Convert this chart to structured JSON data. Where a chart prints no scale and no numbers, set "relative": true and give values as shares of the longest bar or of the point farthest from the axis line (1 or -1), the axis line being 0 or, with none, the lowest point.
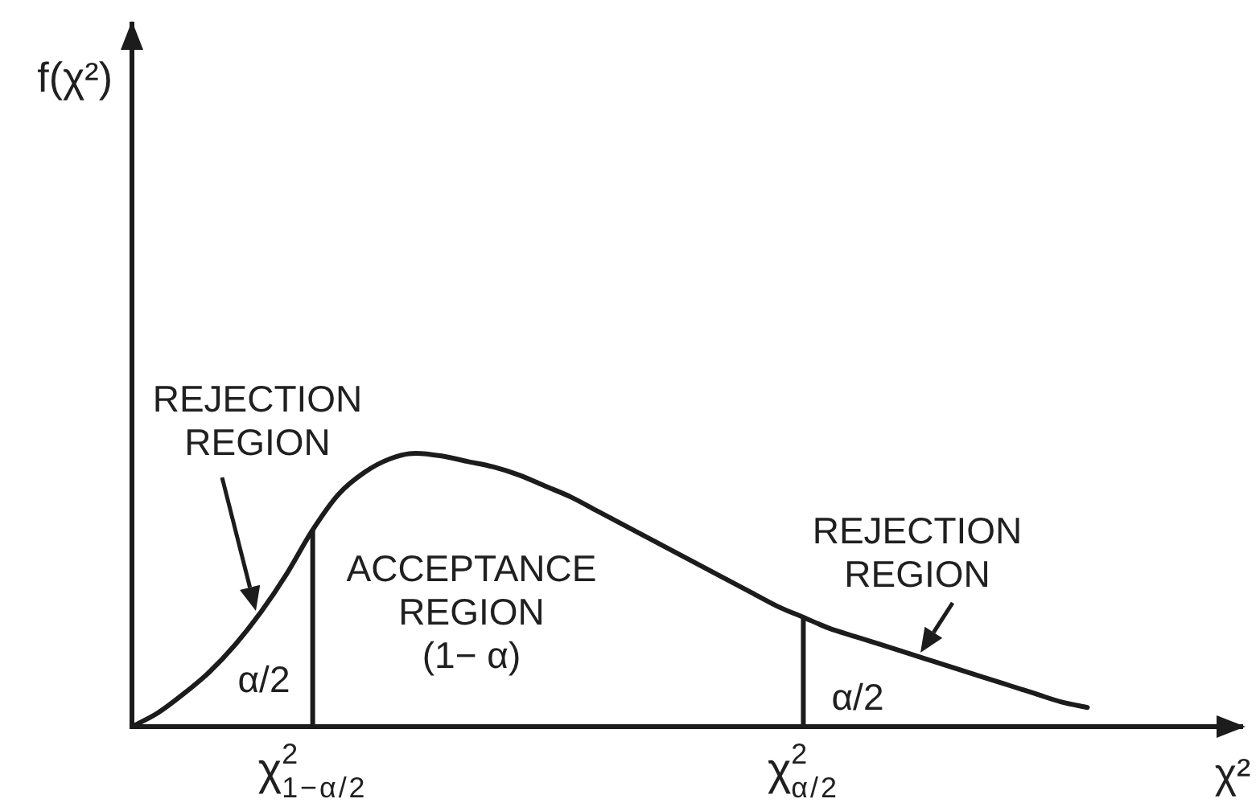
{
  "chart_data": {
    "type": "line",
    "xlabel": "χ²",
    "relative": true,
    "categories": [
      null,
      null,
      null,
      null,
      null,
      null,
      null,
      "χ$^{2}$$_{1−α/2}$",
      null,
      null,
      null,
      null,
      null,
      null,
      null,
      null,
      null,
      null,
      null,
      null,
      null,
      null,
      null,
      null,
      null,
      null,
      "χ$^{2}$$_{α/2}$",
      null,
      null,
      null,
      null,
      null,
      null,
      null,
      null,
      null,
      null,
      null,
      null,
      null,
      null,
      null,
      null,
      null
    ],
    "series": [
      {
        "color": "#1c1c1c",
        "values": [
          0,
          0.05,
          0.12,
          0.2,
          0.3,
          0.42,
          0.56,
          0.72,
          0.85,
          0.93,
          0.98,
          1,
          0.99,
          0.97,
          0.95,
          0.92,
          0.88,
          0.84,
          0.79,
          0.74,
          0.69,
          0.64,
          0.59,
          0.54,
          0.49,
          0.44,
          0.4,
          0.36,
          0.33,
          0.3,
          0.27,
          0.24,
          0.21,
          0.18,
          0.15,
          0.12,
          0.09,
          0.07,
          null,
          null,
          null,
          null,
          null,
          null
        ]
      }
    ],
    "ref_lines": [
      {
        "axis": "x",
        "value": "χ$^{2}$$_{1−α/2}$",
        "color": "#1c1c1c"
      },
      {
        "axis": "x",
        "value": "χ$^{2}$$_{α/2}$",
        "color": "#1c1c1c"
      }
    ],
    "annotations": [
      "f(χ²)",
      "REJECTION\nREGION",
      "α/2",
      "ACCEPTANCE\nREGION\n(1− α)",
      "REJECTION\nREGION",
      "α/2"
    ]
  }
}
